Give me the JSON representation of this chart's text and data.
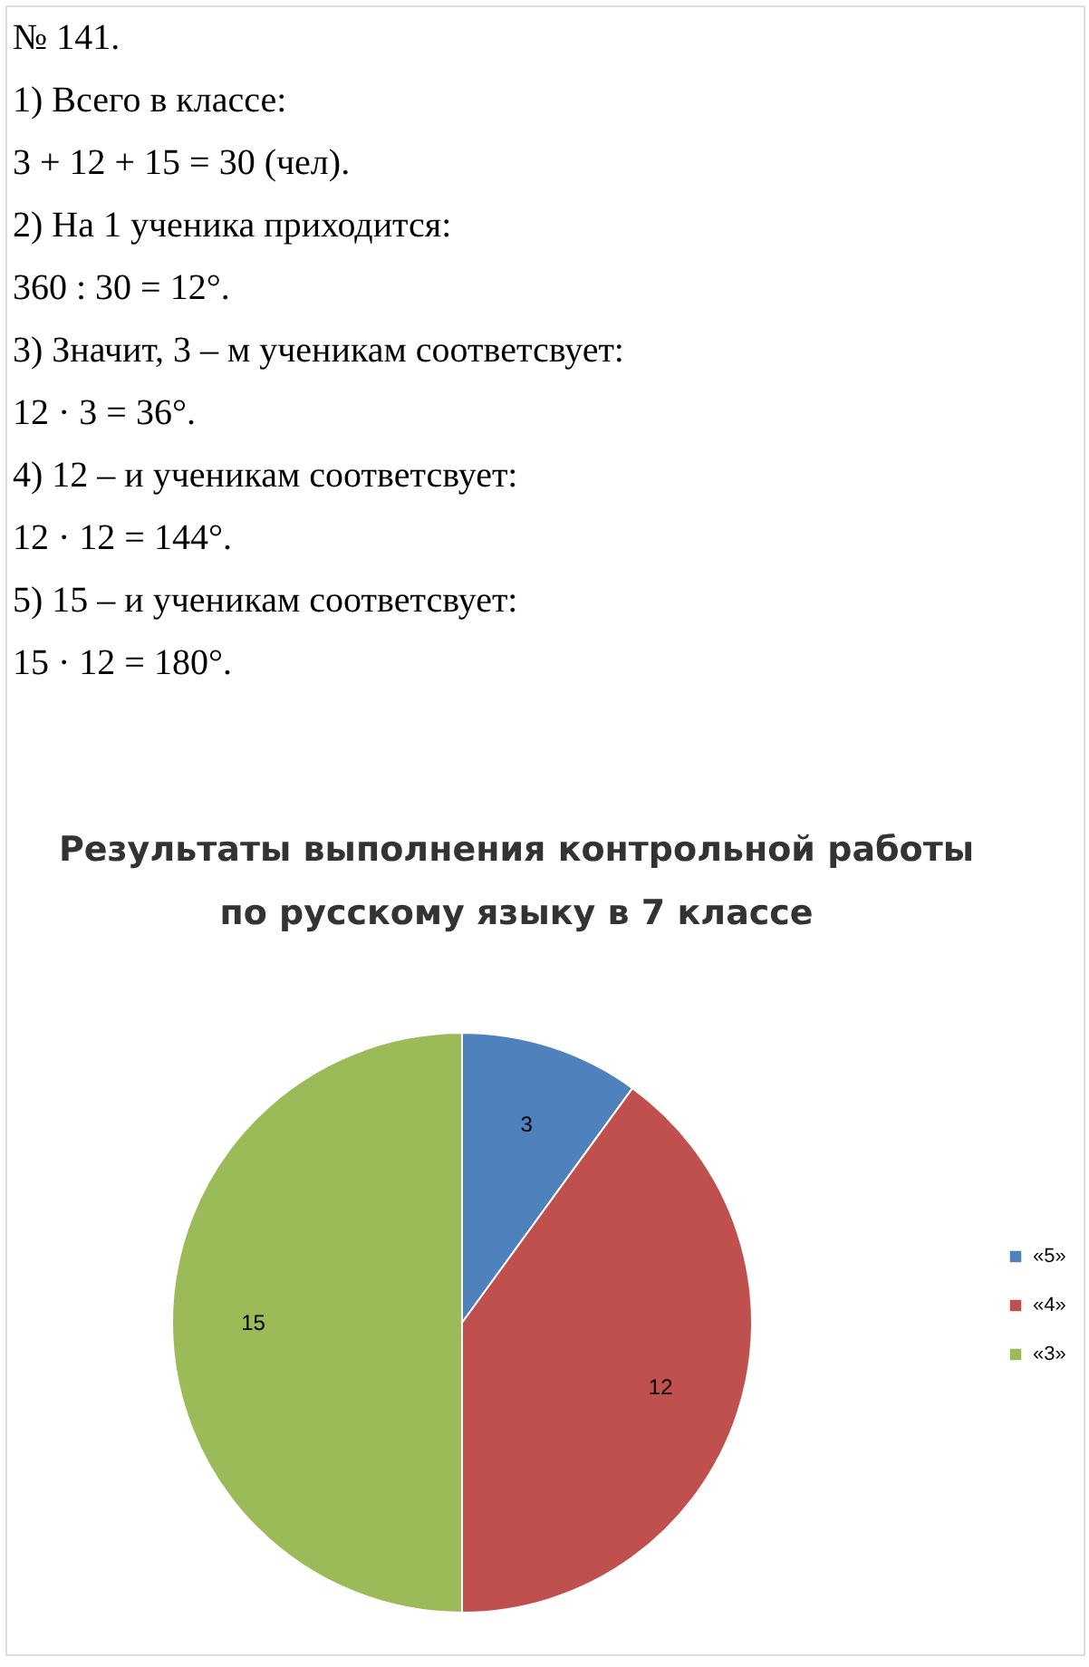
{
  "chart_data": {
    "type": "pie",
    "title": "Результаты выполнения контрольной работы по русскому языку в 7 классе",
    "categories": [
      "«5»",
      "«4»",
      "«3»"
    ],
    "values": [
      3,
      12,
      15
    ],
    "colors": [
      "#4f81bd",
      "#c0504d",
      "#9bbb59"
    ],
    "data_labels": true,
    "legend": "right",
    "annotations": [
      "№ 141.",
      "1) Всего в классе:",
      "3 + 12 + 15 = 30 (чел).",
      "2) На 1 ученика приходится:",
      "360 : 30 = 12°.",
      "3) Значит, 3 – м ученикам соответсвует:",
      "12 · 3 = 36°.",
      "4) 12 – и ученикам соответсвует:",
      "12 · 12 = 144°.",
      "5) 15 – и ученикам соответсвует:",
      "15 · 12 = 180°."
    ]
  }
}
